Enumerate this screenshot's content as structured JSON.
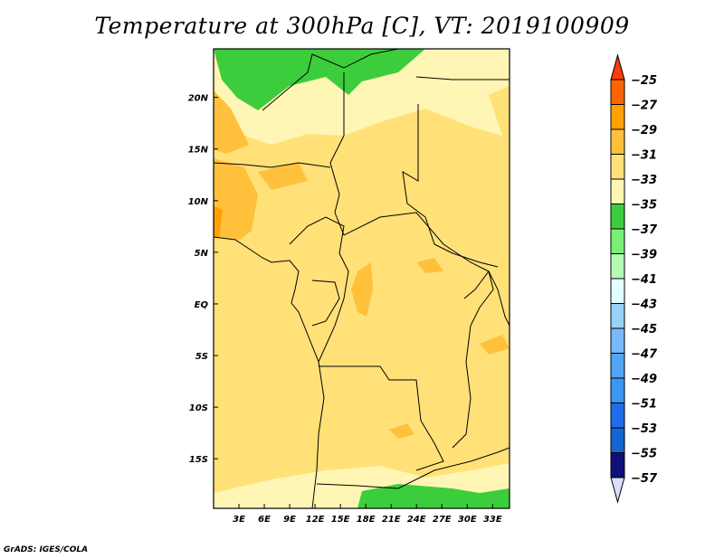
{
  "title": "Temperature at 300hPa [C], VT: 2019100909",
  "credit": "GrADS: IGES/COLA",
  "map": {
    "lon_range": [
      0,
      35
    ],
    "lat_range": [
      -19.8,
      24.7
    ],
    "x_ticks": [
      {
        "lon": 3,
        "label": "3E"
      },
      {
        "lon": 6,
        "label": "6E"
      },
      {
        "lon": 9,
        "label": "9E"
      },
      {
        "lon": 12,
        "label": "12E"
      },
      {
        "lon": 15,
        "label": "15E"
      },
      {
        "lon": 18,
        "label": "18E"
      },
      {
        "lon": 21,
        "label": "21E"
      },
      {
        "lon": 24,
        "label": "24E"
      },
      {
        "lon": 27,
        "label": "27E"
      },
      {
        "lon": 30,
        "label": "30E"
      },
      {
        "lon": 33,
        "label": "33E"
      }
    ],
    "y_ticks": [
      {
        "lat": 20,
        "label": "20N"
      },
      {
        "lat": 15,
        "label": "15N"
      },
      {
        "lat": 10,
        "label": "10N"
      },
      {
        "lat": 5,
        "label": "5N"
      },
      {
        "lat": 0,
        "label": "EQ"
      },
      {
        "lat": -5,
        "label": "5S"
      },
      {
        "lat": -10,
        "label": "10S"
      },
      {
        "lat": -15,
        "label": "15S"
      }
    ],
    "dominant_range": "-33 to -31"
  },
  "colorbar": {
    "labels": [
      "-25",
      "-27",
      "-29",
      "-31",
      "-33",
      "-35",
      "-37",
      "-39",
      "-41",
      "-43",
      "-45",
      "-47",
      "-49",
      "-51",
      "-53",
      "-55",
      "-57"
    ],
    "top_arrow_color": "#fa3c0a",
    "bottom_arrow_color": "#dcdcff",
    "colors": [
      "#ff6400",
      "#ffa000",
      "#ffc03c",
      "#ffe178",
      "#fff5b4",
      "#3ccd3c",
      "#78f078",
      "#b4fab4",
      "#e1ffff",
      "#96d2fa",
      "#78b9fa",
      "#50a5f5",
      "#3c96f5",
      "#1e6eeb",
      "#1464d2",
      "#0f0f78"
    ]
  }
}
